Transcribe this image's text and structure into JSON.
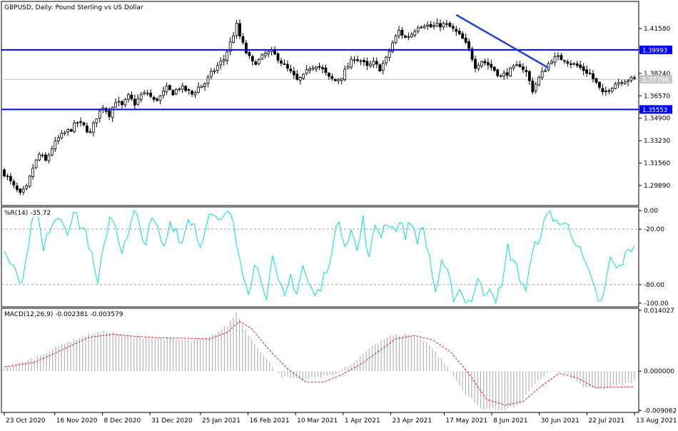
{
  "chart_data": [
    {
      "type": "candlestick",
      "title": "GBPUSD, Daily:  Pound Sterling vs US Dollar",
      "y_ticks": [
        1.4158,
        1.3824,
        1.3657,
        1.349,
        1.3323,
        1.3156,
        1.2989
      ],
      "y_tick_labels": [
        "1.41580",
        "1.38240",
        "1.36570",
        "1.34900",
        "1.33230",
        "1.31560",
        "1.29890"
      ],
      "ylim": [
        1.284,
        1.436
      ],
      "horizontal_lines": [
        {
          "value": 1.39993,
          "label": "1.39993",
          "color": "#0000ff"
        },
        {
          "value": 1.35553,
          "label": "1.35553",
          "color": "#0000ff"
        }
      ],
      "current_price": {
        "value": 1.37796,
        "label": "1.37796"
      },
      "trendline": {
        "from": {
          "index": 142,
          "value": 1.426
        },
        "to": {
          "index": 171,
          "value": 1.3865
        },
        "color": "#1f3fcf"
      },
      "anchors": [
        [
          0,
          1.308
        ],
        [
          3,
          1.298
        ],
        [
          5,
          1.292
        ],
        [
          7,
          1.297
        ],
        [
          9,
          1.312
        ],
        [
          11,
          1.322
        ],
        [
          13,
          1.317
        ],
        [
          15,
          1.327
        ],
        [
          17,
          1.334
        ],
        [
          19,
          1.338
        ],
        [
          21,
          1.341
        ],
        [
          23,
          1.346
        ],
        [
          25,
          1.343
        ],
        [
          27,
          1.338
        ],
        [
          29,
          1.35
        ],
        [
          31,
          1.358
        ],
        [
          33,
          1.352
        ],
        [
          35,
          1.362
        ],
        [
          37,
          1.358
        ],
        [
          39,
          1.365
        ],
        [
          41,
          1.36
        ],
        [
          43,
          1.366
        ],
        [
          45,
          1.368
        ],
        [
          47,
          1.362
        ],
        [
          49,
          1.365
        ],
        [
          51,
          1.371
        ],
        [
          53,
          1.368
        ],
        [
          55,
          1.372
        ],
        [
          57,
          1.37
        ],
        [
          59,
          1.367
        ],
        [
          61,
          1.372
        ],
        [
          63,
          1.375
        ],
        [
          65,
          1.382
        ],
        [
          67,
          1.388
        ],
        [
          69,
          1.393
        ],
        [
          71,
          1.405
        ],
        [
          73,
          1.418
        ],
        [
          74,
          1.41
        ],
        [
          76,
          1.398
        ],
        [
          78,
          1.39
        ],
        [
          80,
          1.392
        ],
        [
          82,
          1.397
        ],
        [
          84,
          1.398
        ],
        [
          86,
          1.394
        ],
        [
          88,
          1.388
        ],
        [
          90,
          1.383
        ],
        [
          92,
          1.377
        ],
        [
          94,
          1.38
        ],
        [
          96,
          1.387
        ],
        [
          98,
          1.389
        ],
        [
          100,
          1.385
        ],
        [
          102,
          1.379
        ],
        [
          104,
          1.377
        ],
        [
          106,
          1.38
        ],
        [
          108,
          1.388
        ],
        [
          110,
          1.394
        ],
        [
          112,
          1.392
        ],
        [
          114,
          1.387
        ],
        [
          116,
          1.39
        ],
        [
          118,
          1.386
        ],
        [
          120,
          1.393
        ],
        [
          122,
          1.405
        ],
        [
          124,
          1.414
        ],
        [
          126,
          1.409
        ],
        [
          128,
          1.412
        ],
        [
          130,
          1.418
        ],
        [
          132,
          1.419
        ],
        [
          134,
          1.417
        ],
        [
          136,
          1.418
        ],
        [
          138,
          1.419
        ],
        [
          140,
          1.417
        ],
        [
          142,
          1.413
        ],
        [
          144,
          1.408
        ],
        [
          146,
          1.4
        ],
        [
          148,
          1.388
        ],
        [
          150,
          1.392
        ],
        [
          152,
          1.389
        ],
        [
          154,
          1.385
        ],
        [
          156,
          1.38
        ],
        [
          158,
          1.383
        ],
        [
          160,
          1.386
        ],
        [
          162,
          1.389
        ],
        [
          164,
          1.383
        ],
        [
          166,
          1.37
        ],
        [
          168,
          1.379
        ],
        [
          170,
          1.386
        ],
        [
          172,
          1.393
        ],
        [
          174,
          1.394
        ],
        [
          176,
          1.393
        ],
        [
          178,
          1.39
        ],
        [
          180,
          1.388
        ],
        [
          182,
          1.385
        ],
        [
          184,
          1.382
        ],
        [
          186,
          1.375
        ],
        [
          188,
          1.367
        ],
        [
          190,
          1.371
        ],
        [
          192,
          1.375
        ],
        [
          194,
          1.377
        ],
        [
          196,
          1.378
        ],
        [
          198,
          1.378
        ]
      ],
      "n": 199
    },
    {
      "type": "line",
      "label": "%R(14) -35.72",
      "ylim": [
        -104,
        4
      ],
      "y_ticks": [
        0,
        -20,
        -80,
        -100
      ],
      "y_tick_labels": [
        "0.00",
        "-20.00",
        "-80.00",
        "-100.00"
      ],
      "reference_levels": [
        -20,
        -80
      ],
      "color": "#00e0e0",
      "anchors": [
        [
          0,
          -42
        ],
        [
          3,
          -55
        ],
        [
          5,
          -80
        ],
        [
          7,
          -62
        ],
        [
          9,
          -8
        ],
        [
          11,
          -3
        ],
        [
          13,
          -45
        ],
        [
          15,
          -18
        ],
        [
          17,
          -5
        ],
        [
          19,
          -8
        ],
        [
          21,
          -20
        ],
        [
          23,
          -2
        ],
        [
          25,
          -15
        ],
        [
          27,
          -22
        ],
        [
          29,
          -50
        ],
        [
          31,
          -82
        ],
        [
          33,
          -40
        ],
        [
          35,
          -5
        ],
        [
          37,
          -15
        ],
        [
          39,
          -45
        ],
        [
          41,
          -30
        ],
        [
          43,
          0
        ],
        [
          45,
          -18
        ],
        [
          47,
          -35
        ],
        [
          49,
          -10
        ],
        [
          51,
          -22
        ],
        [
          53,
          -42
        ],
        [
          55,
          -12
        ],
        [
          57,
          -20
        ],
        [
          59,
          -35
        ],
        [
          61,
          -8
        ],
        [
          63,
          -14
        ],
        [
          65,
          -40
        ],
        [
          67,
          -10
        ],
        [
          69,
          -5
        ],
        [
          71,
          -15
        ],
        [
          73,
          -8
        ],
        [
          75,
          -2
        ],
        [
          77,
          -35
        ],
        [
          79,
          -62
        ],
        [
          81,
          -85
        ],
        [
          83,
          -60
        ],
        [
          85,
          -70
        ],
        [
          87,
          -90
        ],
        [
          89,
          -55
        ],
        [
          91,
          -80
        ],
        [
          93,
          -95
        ],
        [
          95,
          -70
        ],
        [
          97,
          -88
        ],
        [
          99,
          -60
        ],
        [
          101,
          -80
        ],
        [
          103,
          -92
        ],
        [
          105,
          -85
        ],
        [
          107,
          -60
        ],
        [
          109,
          -40
        ],
        [
          111,
          -8
        ],
        [
          113,
          -35
        ],
        [
          115,
          -20
        ],
        [
          117,
          -45
        ],
        [
          119,
          -10
        ],
        [
          121,
          -55
        ],
        [
          123,
          -15
        ],
        [
          125,
          -25
        ],
        [
          127,
          -10
        ],
        [
          129,
          -20
        ],
        [
          131,
          -14
        ],
        [
          133,
          -25
        ],
        [
          135,
          -12
        ],
        [
          137,
          -30
        ],
        [
          139,
          -20
        ],
        [
          141,
          -50
        ],
        [
          143,
          -88
        ],
        [
          145,
          -60
        ],
        [
          147,
          -70
        ],
        [
          149,
          -92
        ],
        [
          151,
          -85
        ],
        [
          153,
          -100
        ],
        [
          155,
          -95
        ],
        [
          157,
          -75
        ],
        [
          159,
          -90
        ],
        [
          161,
          -80
        ],
        [
          163,
          -95
        ],
        [
          165,
          -85
        ],
        [
          167,
          -40
        ],
        [
          169,
          -55
        ],
        [
          171,
          -72
        ],
        [
          173,
          -85
        ],
        [
          175,
          -50
        ],
        [
          177,
          -30
        ],
        [
          179,
          -15
        ],
        [
          181,
          -2
        ],
        [
          183,
          -10
        ],
        [
          185,
          -18
        ],
        [
          187,
          -12
        ],
        [
          189,
          -30
        ],
        [
          191,
          -45
        ],
        [
          193,
          -62
        ],
        [
          195,
          -80
        ],
        [
          197,
          -95
        ],
        [
          198,
          -100
        ]
      ],
      "anchors_tail": [
        [
          199,
          -90
        ],
        [
          201,
          -50
        ],
        [
          203,
          -65
        ],
        [
          205,
          -55
        ],
        [
          207,
          -45
        ],
        [
          209,
          -35.72
        ]
      ],
      "n": 210
    },
    {
      "type": "bar+line",
      "label": "MACD(12,26,9) -0.002381 -0.003579",
      "ylim": [
        -0.0095,
        0.0145
      ],
      "y_ticks": [
        0.014027,
        0.0,
        -0.009062
      ],
      "y_tick_labels": [
        "0.014027",
        "0.000000",
        "-0.009062"
      ],
      "histogram_color": "#b4b4b4",
      "signal_color": "#e02020",
      "histogram_anchors": [
        [
          0,
          0.0008
        ],
        [
          10,
          0.003
        ],
        [
          20,
          0.0065
        ],
        [
          28,
          0.0085
        ],
        [
          34,
          0.0092
        ],
        [
          40,
          0.0082
        ],
        [
          46,
          0.0078
        ],
        [
          54,
          0.0075
        ],
        [
          62,
          0.007
        ],
        [
          68,
          0.0078
        ],
        [
          74,
          0.0105
        ],
        [
          77,
          0.0135
        ],
        [
          80,
          0.0095
        ],
        [
          86,
          0.0035
        ],
        [
          92,
          -0.0012
        ],
        [
          98,
          -0.002
        ],
        [
          104,
          -0.0015
        ],
        [
          110,
          -0.0005
        ],
        [
          116,
          0.002
        ],
        [
          122,
          0.006
        ],
        [
          128,
          0.0082
        ],
        [
          134,
          0.0085
        ],
        [
          140,
          0.0068
        ],
        [
          146,
          0.002
        ],
        [
          152,
          -0.0045
        ],
        [
          158,
          -0.0085
        ],
        [
          164,
          -0.009
        ],
        [
          170,
          -0.008
        ],
        [
          176,
          -0.003
        ],
        [
          181,
          0.0002
        ],
        [
          186,
          -0.0005
        ],
        [
          192,
          -0.0035
        ],
        [
          198,
          -0.0042
        ],
        [
          209,
          -0.0024
        ]
      ],
      "signal_anchors": [
        [
          0,
          0.001
        ],
        [
          10,
          0.002
        ],
        [
          20,
          0.0052
        ],
        [
          28,
          0.0078
        ],
        [
          36,
          0.0085
        ],
        [
          44,
          0.008
        ],
        [
          52,
          0.0077
        ],
        [
          60,
          0.0076
        ],
        [
          68,
          0.0074
        ],
        [
          74,
          0.009
        ],
        [
          78,
          0.0115
        ],
        [
          82,
          0.0098
        ],
        [
          88,
          0.0048
        ],
        [
          94,
          0.0005
        ],
        [
          100,
          -0.0025
        ],
        [
          106,
          -0.0025
        ],
        [
          112,
          -0.0008
        ],
        [
          118,
          0.0015
        ],
        [
          124,
          0.0045
        ],
        [
          130,
          0.0075
        ],
        [
          136,
          0.0082
        ],
        [
          142,
          0.0072
        ],
        [
          148,
          0.0045
        ],
        [
          154,
          -0.0005
        ],
        [
          160,
          -0.0065
        ],
        [
          166,
          -0.0078
        ],
        [
          172,
          -0.007
        ],
        [
          178,
          -0.0035
        ],
        [
          184,
          -0.0005
        ],
        [
          190,
          -0.0015
        ],
        [
          196,
          -0.0038
        ],
        [
          209,
          -0.0036
        ]
      ],
      "n": 210
    }
  ],
  "x_axis": {
    "labels": [
      "23 Oct 2020",
      "16 Nov 2020",
      "8 Dec 2020",
      "31 Dec 2020",
      "25 Jan 2021",
      "16 Feb 2021",
      "10 Mar 2021",
      "1 Apr 2021",
      "23 Apr 2021",
      "17 May 2021",
      "8 Jun 2021",
      "30 Jun 2021",
      "22 Jul 2021",
      "13 Aug 2021"
    ],
    "label_days": [
      0,
      17,
      33,
      49,
      66,
      82,
      98,
      114,
      130,
      148,
      164,
      180,
      196,
      212
    ]
  },
  "colors": {
    "axis": "#000000",
    "bull_bear": "#000000",
    "hline": "#0000ff",
    "price_line": "#c0c0c0",
    "level_line": "#a0a0a0"
  }
}
